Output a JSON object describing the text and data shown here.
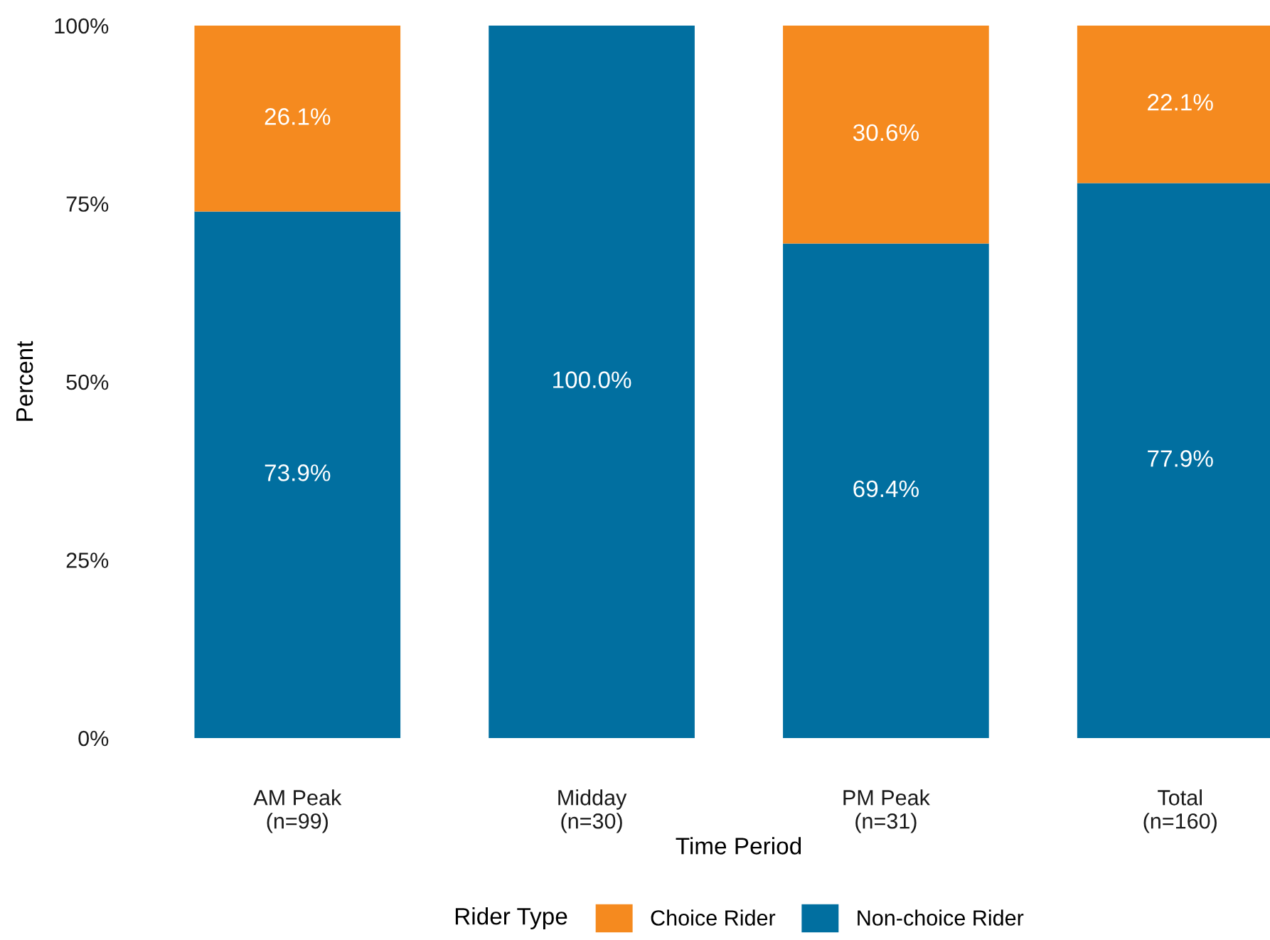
{
  "chart_data": {
    "type": "bar",
    "stacked": true,
    "xlabel": "Time Period",
    "ylabel": "Percent",
    "legend_title": "Rider Type",
    "legend": "bottom",
    "grid": false,
    "categories": [
      "AM Peak\n(n=99)",
      "Midday\n(n=30)",
      "PM Peak\n(n=31)",
      "Total\n(n=160)"
    ],
    "ylim": [
      0,
      100
    ],
    "yticks": [
      {
        "value": 0,
        "label": "0%"
      },
      {
        "value": 25,
        "label": "25%"
      },
      {
        "value": 50,
        "label": "50%"
      },
      {
        "value": 75,
        "label": "75%"
      },
      {
        "value": 100,
        "label": "100%"
      }
    ],
    "series": [
      {
        "name": "Non-choice Rider",
        "color": "#016fa0",
        "values": [
          73.9,
          100.0,
          69.4,
          77.9
        ],
        "value_labels": [
          "73.9%",
          "100.0%",
          "69.4%",
          "77.9%"
        ]
      },
      {
        "name": "Choice Rider",
        "color": "#f58a1f",
        "values": [
          26.1,
          null,
          30.6,
          22.1
        ],
        "value_labels": [
          "26.1%",
          null,
          "30.6%",
          "22.1%"
        ]
      }
    ]
  }
}
